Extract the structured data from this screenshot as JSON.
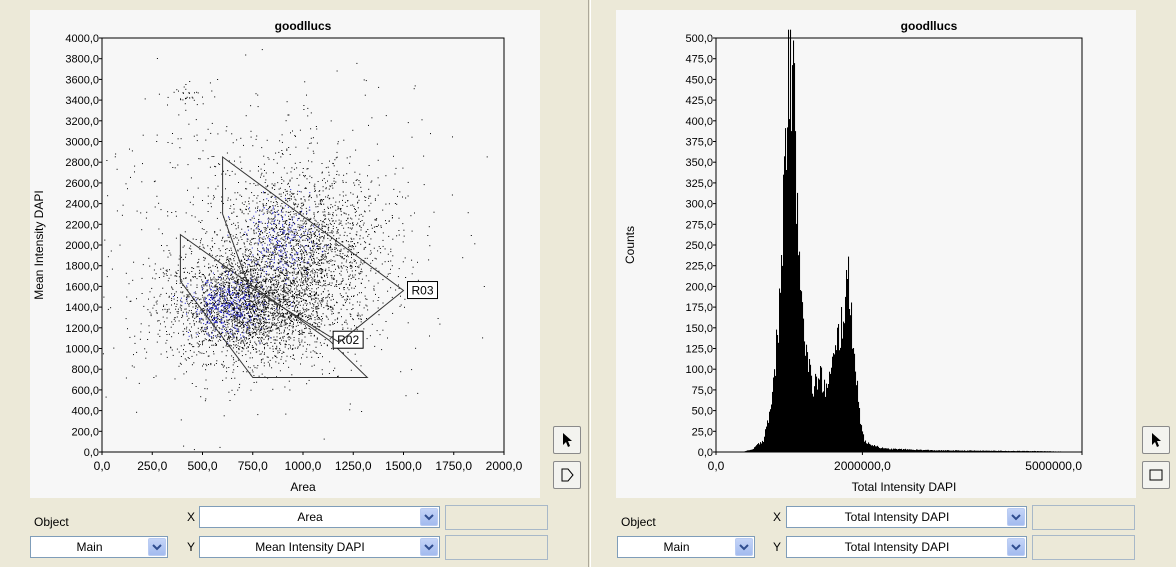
{
  "scatter_panel": {
    "chart_data": {
      "type": "scatter",
      "title": "goodllucs",
      "xlabel": "Area",
      "ylabel": "Mean Intensity DAPI",
      "xlim": [
        0,
        2000
      ],
      "ylim": [
        0,
        4000
      ],
      "x_ticks": [
        "0,0",
        "250,0",
        "500,0",
        "750,0",
        "1000,0",
        "1250,0",
        "1500,0",
        "1750,0",
        "2000,0"
      ],
      "y_ticks": [
        "0,0",
        "200,0",
        "400,0",
        "600,0",
        "800,0",
        "1000,0",
        "1200,0",
        "1400,0",
        "1600,0",
        "1800,0",
        "2000,0",
        "2200,0",
        "2400,0",
        "2600,0",
        "2800,0",
        "3000,0",
        "3200,0",
        "3400,0",
        "3600,0",
        "3800,0",
        "4000,0"
      ],
      "clusters": [
        {
          "cx": 720,
          "cy": 1400,
          "sx": 200,
          "sy": 260,
          "n": 2600,
          "color": "#000000"
        },
        {
          "cx": 1000,
          "cy": 1950,
          "sx": 210,
          "sy": 380,
          "n": 2000,
          "color": "#000000"
        },
        {
          "cx": 620,
          "cy": 1400,
          "sx": 90,
          "sy": 140,
          "n": 380,
          "color": "#1a1ad0"
        },
        {
          "cx": 900,
          "cy": 2050,
          "sx": 90,
          "sy": 190,
          "n": 240,
          "color": "#1a1ad0"
        },
        {
          "cx": 750,
          "cy": 2100,
          "sx": 420,
          "sy": 850,
          "n": 700,
          "color": "#000000"
        },
        {
          "cx": 420,
          "cy": 3460,
          "sx": 35,
          "sy": 40,
          "n": 30,
          "color": "#000000"
        }
      ],
      "regions": [
        {
          "name": "R02",
          "points": [
            [
              390,
              2100
            ],
            [
              1130,
              1080
            ],
            [
              1320,
              720
            ],
            [
              750,
              720
            ],
            [
              390,
              1650
            ]
          ]
        },
        {
          "name": "R03",
          "points": [
            [
              600,
              2850
            ],
            [
              1500,
              1560
            ],
            [
              1180,
              1060
            ],
            [
              730,
              1600
            ],
            [
              600,
              2300
            ]
          ]
        }
      ]
    },
    "tools": {
      "pointer_icon": "pointer-arrow-icon",
      "polygon_icon": "polygon-gate-icon"
    },
    "controls": {
      "object_label": "Object",
      "object_value": "Main",
      "x_label": "X",
      "x_value": "Area",
      "y_label": "Y",
      "y_value": "Mean Intensity DAPI"
    }
  },
  "histogram_panel": {
    "chart_data": {
      "type": "bar",
      "title": "goodllucs",
      "xlabel": "Total Intensity DAPI",
      "ylabel": "Counts",
      "xlim": [
        0,
        5000000
      ],
      "ylim": [
        0,
        500
      ],
      "x_ticks": [
        "0,0",
        "2000000,0",
        "5000000,0"
      ],
      "y_ticks": [
        "0,0",
        "25,0",
        "50,0",
        "75,0",
        "100,0",
        "125,0",
        "150,0",
        "175,0",
        "200,0",
        "225,0",
        "250,0",
        "275,0",
        "300,0",
        "325,0",
        "350,0",
        "375,0",
        "400,0",
        "425,0",
        "450,0",
        "475,0",
        "500,0"
      ],
      "histogram_profile": [
        {
          "x": 0,
          "y": 0
        },
        {
          "x": 350000,
          "y": 0
        },
        {
          "x": 500000,
          "y": 3
        },
        {
          "x": 650000,
          "y": 15
        },
        {
          "x": 780000,
          "y": 70
        },
        {
          "x": 880000,
          "y": 190
        },
        {
          "x": 960000,
          "y": 400
        },
        {
          "x": 1010000,
          "y": 510
        },
        {
          "x": 1060000,
          "y": 420
        },
        {
          "x": 1140000,
          "y": 260
        },
        {
          "x": 1230000,
          "y": 120
        },
        {
          "x": 1320000,
          "y": 78
        },
        {
          "x": 1420000,
          "y": 90
        },
        {
          "x": 1520000,
          "y": 75
        },
        {
          "x": 1620000,
          "y": 112
        },
        {
          "x": 1720000,
          "y": 160
        },
        {
          "x": 1800000,
          "y": 205
        },
        {
          "x": 1870000,
          "y": 150
        },
        {
          "x": 1950000,
          "y": 55
        },
        {
          "x": 2030000,
          "y": 12
        },
        {
          "x": 2300000,
          "y": 4
        },
        {
          "x": 3000000,
          "y": 2
        },
        {
          "x": 4500000,
          "y": 1
        },
        {
          "x": 5000000,
          "y": 0
        }
      ]
    },
    "tools": {
      "pointer_icon": "pointer-arrow-icon",
      "rectangle_icon": "rectangle-gate-icon"
    },
    "controls": {
      "object_label": "Object",
      "object_value": "Main",
      "x_label": "X",
      "x_value": "Total Intensity DAPI",
      "y_label": "Y",
      "y_value": "Total Intensity DAPI"
    }
  }
}
